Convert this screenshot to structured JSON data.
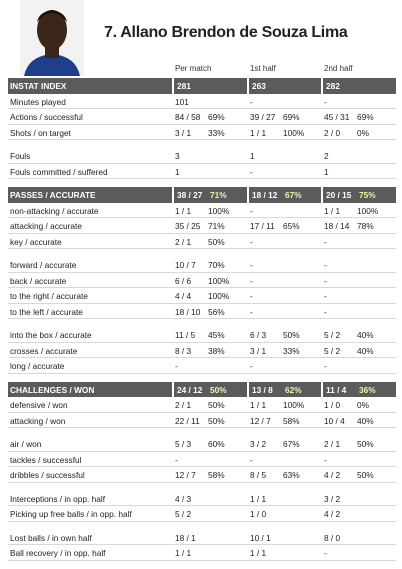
{
  "header": {
    "title": "7. Allano Brendon de Souza Lima"
  },
  "columns": [
    "Per match",
    "1st half",
    "2nd half"
  ],
  "sections": [
    {
      "header": {
        "label": "INSTAT INDEX",
        "cells": [
          [
            "281"
          ],
          [
            "263"
          ],
          [
            "282"
          ]
        ]
      },
      "groups": [
        [
          {
            "label": "Minutes played",
            "cells": [
              [
                "101"
              ],
              [
                "-"
              ],
              [
                "-"
              ]
            ]
          },
          {
            "label": "Actions / successful",
            "cells": [
              [
                "84 / 58",
                "69%"
              ],
              [
                "39 / 27",
                "69%"
              ],
              [
                "45 / 31",
                "69%"
              ]
            ]
          },
          {
            "label": "Shots / on target",
            "cells": [
              [
                "3 / 1",
                "33%"
              ],
              [
                "1 / 1",
                "100%"
              ],
              [
                "2 / 0",
                "0%"
              ]
            ]
          }
        ],
        [
          {
            "label": "Fouls",
            "cells": [
              [
                "3"
              ],
              [
                "1"
              ],
              [
                "2"
              ]
            ]
          },
          {
            "label": "Fouls committed / suffered",
            "cells": [
              [
                "1"
              ],
              [
                "-"
              ],
              [
                "1"
              ]
            ]
          }
        ]
      ]
    },
    {
      "header": {
        "label": "PASSES / ACCURATE",
        "cells": [
          [
            "38 / 27",
            "71%"
          ],
          [
            "18 / 12",
            "67%"
          ],
          [
            "20 / 15",
            "75%"
          ]
        ]
      },
      "groups": [
        [
          {
            "label": "non-attacking / accurate",
            "cells": [
              [
                "1 / 1",
                "100%"
              ],
              [
                "-"
              ],
              [
                "1 / 1",
                "100%"
              ]
            ]
          },
          {
            "label": "attacking / accurate",
            "cells": [
              [
                "35 / 25",
                "71%"
              ],
              [
                "17 / 11",
                "65%"
              ],
              [
                "18 / 14",
                "78%"
              ]
            ]
          },
          {
            "label": "key / accurate",
            "cells": [
              [
                "2 / 1",
                "50%"
              ],
              [
                "-"
              ],
              [
                "-"
              ]
            ]
          }
        ],
        [
          {
            "label": "forward / accurate",
            "cells": [
              [
                "10 / 7",
                "70%"
              ],
              [
                "-"
              ],
              [
                "-"
              ]
            ]
          },
          {
            "label": "back / accurate",
            "cells": [
              [
                "6 / 6",
                "100%"
              ],
              [
                "-"
              ],
              [
                "-"
              ]
            ]
          },
          {
            "label": "to the right / accurate",
            "cells": [
              [
                "4 / 4",
                "100%"
              ],
              [
                "-"
              ],
              [
                "-"
              ]
            ]
          },
          {
            "label": "to the left / accurate",
            "cells": [
              [
                "18 / 10",
                "56%"
              ],
              [
                "-"
              ],
              [
                "-"
              ]
            ]
          }
        ],
        [
          {
            "label": "into the box / accurate",
            "cells": [
              [
                "11 / 5",
                "45%"
              ],
              [
                "6 / 3",
                "50%"
              ],
              [
                "5 / 2",
                "40%"
              ]
            ]
          },
          {
            "label": "crosses / accurate",
            "cells": [
              [
                "8 / 3",
                "38%"
              ],
              [
                "3 / 1",
                "33%"
              ],
              [
                "5 / 2",
                "40%"
              ]
            ]
          },
          {
            "label": "long / accurate",
            "cells": [
              [
                "-"
              ],
              [
                "-"
              ],
              [
                "-"
              ]
            ]
          }
        ]
      ]
    },
    {
      "header": {
        "label": "CHALLENGES / WON",
        "cells": [
          [
            "24 / 12",
            "50%"
          ],
          [
            "13 / 8",
            "62%"
          ],
          [
            "11 / 4",
            "36%"
          ]
        ]
      },
      "groups": [
        [
          {
            "label": "defensive / won",
            "cells": [
              [
                "2 / 1",
                "50%"
              ],
              [
                "1 / 1",
                "100%"
              ],
              [
                "1 / 0",
                "0%"
              ]
            ]
          },
          {
            "label": "attacking / won",
            "cells": [
              [
                "22 / 11",
                "50%"
              ],
              [
                "12 / 7",
                "58%"
              ],
              [
                "10 / 4",
                "40%"
              ]
            ]
          }
        ],
        [
          {
            "label": "air / won",
            "cells": [
              [
                "5 / 3",
                "60%"
              ],
              [
                "3 / 2",
                "67%"
              ],
              [
                "2 / 1",
                "50%"
              ]
            ]
          },
          {
            "label": "tackles / successful",
            "cells": [
              [
                "-"
              ],
              [
                "-"
              ],
              [
                "-"
              ]
            ]
          },
          {
            "label": "dribbles / successful",
            "cells": [
              [
                "12 / 7",
                "58%"
              ],
              [
                "8 / 5",
                "63%"
              ],
              [
                "4 / 2",
                "50%"
              ]
            ]
          }
        ],
        [
          {
            "label": "Interceptions / in opp. half",
            "cells": [
              [
                "4 / 3"
              ],
              [
                "1 / 1"
              ],
              [
                "3 / 2"
              ]
            ]
          },
          {
            "label": "Picking up free balls / in opp. half",
            "cells": [
              [
                "5 / 2"
              ],
              [
                "1 / 0"
              ],
              [
                "4 / 2"
              ]
            ]
          }
        ],
        [
          {
            "label": "Lost balls / in own half",
            "cells": [
              [
                "18 / 1"
              ],
              [
                "10 / 1"
              ],
              [
                "8 / 0"
              ]
            ]
          },
          {
            "label": "Ball recovery / in opp. half",
            "cells": [
              [
                "1 / 1"
              ],
              [
                "1 / 1"
              ],
              [
                "-"
              ]
            ]
          }
        ]
      ]
    }
  ]
}
